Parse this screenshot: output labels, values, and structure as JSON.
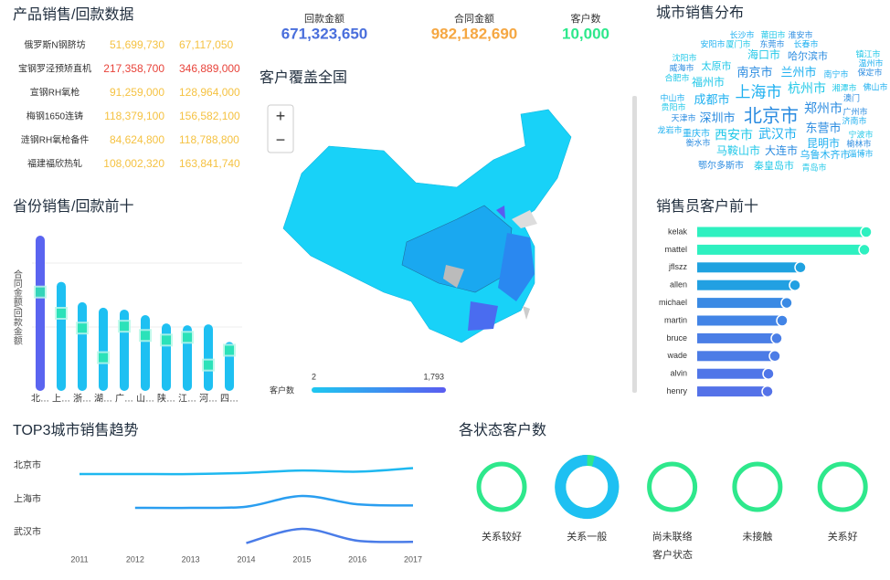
{
  "product_table": {
    "title": "产品销售/回款数据",
    "rows": [
      {
        "name": "俄罗斯N钢脐坊",
        "received": "51,699,730",
        "contract": "67,117,050",
        "color": "#f5c242"
      },
      {
        "name": "宝钢罗泾预矫直机",
        "received": "217,358,700",
        "contract": "346,889,000",
        "color": "#e8433a"
      },
      {
        "name": "宣钢RH氧枪",
        "received": "91,259,000",
        "contract": "128,964,000",
        "color": "#f5c242"
      },
      {
        "name": "梅钢1650连铸",
        "received": "118,379,100",
        "contract": "156,582,100",
        "color": "#f5c242"
      },
      {
        "name": "涟钢RH氧枪备件",
        "received": "84,624,800",
        "contract": "118,788,800",
        "color": "#f5c242"
      },
      {
        "name": "福建福欣热轧",
        "received": "108,002,320",
        "contract": "163,841,740",
        "color": "#f5c242"
      }
    ]
  },
  "kpis": [
    {
      "label": "回款金额",
      "value": "671,323,650",
      "color": "#4a6fdc"
    },
    {
      "label": "合同金额",
      "value": "982,182,690",
      "color": "#f5a742"
    },
    {
      "label": "客户数",
      "value": "10,000",
      "color": "#2ee88c"
    }
  ],
  "map": {
    "title": "客户覆盖全国",
    "legend_title": "客户数",
    "legend_min": "2",
    "legend_max": "1,793",
    "zoom_in": "+",
    "zoom_out": "−"
  },
  "word_cloud": {
    "title": "城市销售分布",
    "words": [
      {
        "text": "北京市",
        "weight": 20
      },
      {
        "text": "上海市",
        "weight": 17
      },
      {
        "text": "杭州市",
        "weight": 14
      },
      {
        "text": "郑州市",
        "weight": 14
      },
      {
        "text": "武汉市",
        "weight": 14
      },
      {
        "text": "西安市",
        "weight": 14
      },
      {
        "text": "南京市",
        "weight": 13
      },
      {
        "text": "兰州市",
        "weight": 13
      },
      {
        "text": "海口市",
        "weight": 12
      },
      {
        "text": "深圳市",
        "weight": 13
      },
      {
        "text": "成都市",
        "weight": 13
      },
      {
        "text": "福州市",
        "weight": 12
      },
      {
        "text": "东营市",
        "weight": 13
      },
      {
        "text": "昆明市",
        "weight": 12
      },
      {
        "text": "马鞍山市",
        "weight": 12
      },
      {
        "text": "大连市",
        "weight": 12
      },
      {
        "text": "乌鲁木齐市",
        "weight": 11
      },
      {
        "text": "秦皇岛市",
        "weight": 11
      },
      {
        "text": "鄂尔多斯市",
        "weight": 10
      },
      {
        "text": "重庆市",
        "weight": 10
      },
      {
        "text": "太原市",
        "weight": 11
      },
      {
        "text": "哈尔滨市",
        "weight": 11
      },
      {
        "text": "长沙市",
        "weight": 9
      },
      {
        "text": "莆田市",
        "weight": 9
      },
      {
        "text": "淮安市",
        "weight": 9
      },
      {
        "text": "安阳市",
        "weight": 9
      },
      {
        "text": "厦门市",
        "weight": 9
      },
      {
        "text": "东莞市",
        "weight": 9
      },
      {
        "text": "长春市",
        "weight": 9
      },
      {
        "text": "沈阳市",
        "weight": 9
      },
      {
        "text": "威海市",
        "weight": 9
      },
      {
        "text": "南宁市",
        "weight": 9
      },
      {
        "text": "湘潭市",
        "weight": 9
      },
      {
        "text": "保定市",
        "weight": 9
      },
      {
        "text": "温州市",
        "weight": 9
      },
      {
        "text": "镇江市",
        "weight": 9
      },
      {
        "text": "天津市",
        "weight": 9
      },
      {
        "text": "中山市",
        "weight": 9
      },
      {
        "text": "贵阳市",
        "weight": 9
      },
      {
        "text": "广州市",
        "weight": 9
      },
      {
        "text": "济南市",
        "weight": 9
      },
      {
        "text": "宁波市",
        "weight": 9
      },
      {
        "text": "榆林市",
        "weight": 9
      },
      {
        "text": "淄博市",
        "weight": 9
      },
      {
        "text": "青岛市",
        "weight": 9
      },
      {
        "text": "衡水市",
        "weight": 9
      },
      {
        "text": "龙岩市",
        "weight": 9
      },
      {
        "text": "合肥市",
        "weight": 9
      },
      {
        "text": "澳门",
        "weight": 9
      },
      {
        "text": "佛山市",
        "weight": 9
      }
    ]
  },
  "chart_data": [
    {
      "type": "bar",
      "title": "省份销售/回款前十",
      "y_label": "合同金额/回款金额",
      "categories": [
        "北…",
        "上…",
        "浙…",
        "湖…",
        "广…",
        "山…",
        "陕…",
        "江…",
        "河…",
        "四…"
      ],
      "series": [
        {
          "color": "#1ec0f2",
          "values": [
            168,
            118,
            96,
            90,
            88,
            82,
            73,
            71,
            72,
            53
          ]
        },
        {
          "color": "#2ee8b0",
          "values": [
            107,
            84,
            68,
            36,
            70,
            60,
            55,
            58,
            28,
            44
          ]
        }
      ]
    },
    {
      "type": "hbar",
      "title": "销售员客户前十",
      "categories": [
        "kelak",
        "mattel",
        "jflszz",
        "allen",
        "michael",
        "martin",
        "bruce",
        "wade",
        "alvin",
        "henry"
      ],
      "values": [
        185,
        183,
        113,
        107,
        98,
        93,
        87,
        85,
        78,
        77
      ],
      "colors": [
        "#2ef0c0",
        "#2ef0c0",
        "#1fa2e0",
        "#22a0e2",
        "#3a8ae4",
        "#4284e6",
        "#4a7ee6",
        "#4c7ce6",
        "#5076e8",
        "#5472e8"
      ]
    },
    {
      "type": "ridgeline",
      "title": "TOP3城市销售趋势",
      "x": [
        2011,
        2012,
        2013,
        2014,
        2015,
        2016,
        2017
      ],
      "series": [
        {
          "name": "北京市",
          "color": "#1eb8f0",
          "values": [
            10,
            10,
            10,
            11,
            13,
            12,
            15
          ]
        },
        {
          "name": "上海市",
          "color": "#2a9ef0",
          "values": [
            null,
            10,
            10,
            11,
            20,
            13,
            12
          ]
        },
        {
          "name": "武汉市",
          "color": "#4a7ce8",
          "values": [
            null,
            null,
            null,
            8,
            20,
            10,
            9
          ]
        }
      ]
    },
    {
      "type": "donut",
      "title": "各状态客户数",
      "x_label": "客户状态",
      "categories": [
        "关系较好",
        "关系一般",
        "尚未联络",
        "未接触",
        "关系好"
      ],
      "values": [
        0,
        96,
        0,
        0,
        0
      ],
      "colors": [
        "#1ec0f2",
        "#2ee88c"
      ]
    }
  ]
}
